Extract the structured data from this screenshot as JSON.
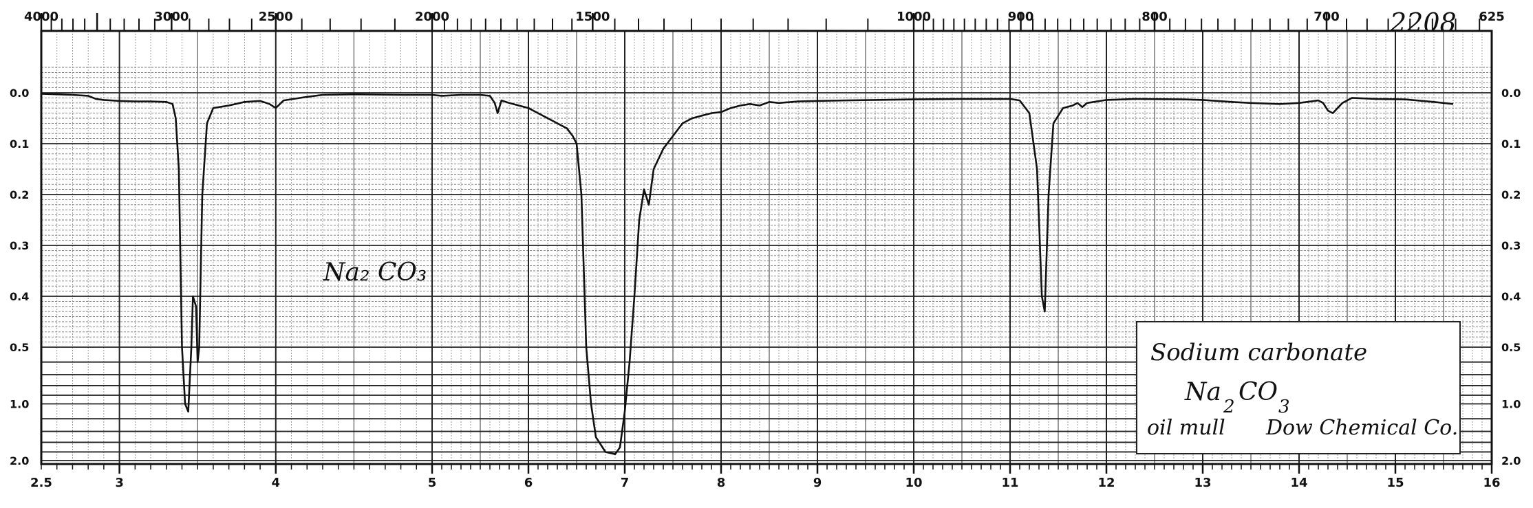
{
  "spectrum_number": "2208",
  "sample_note": "Na₂ CO₃",
  "label_box": {
    "name": "Sodium carbonate",
    "formula_main": "Na",
    "formula_sub1": "2",
    "formula_mid": "CO",
    "formula_sub2": "3",
    "method": "oil mull",
    "source": "Dow Chemical Co."
  },
  "chart_data": {
    "type": "line",
    "title": "",
    "xlabel": "",
    "ylabel": "",
    "x_bottom_range_microns": [
      2.5,
      16
    ],
    "x_bottom_ticks": [
      "2.5",
      "3",
      "4",
      "5",
      "6",
      "7",
      "8",
      "9",
      "10",
      "11",
      "12",
      "13",
      "14",
      "15",
      "16"
    ],
    "x_top_ticks": [
      {
        "label": "4000",
        "cm": 4000
      },
      {
        "label": "3000",
        "cm": 3000
      },
      {
        "label": "2500",
        "cm": 2500
      },
      {
        "label": "2000",
        "cm": 2000
      },
      {
        "label": "1500",
        "cm": 1500
      },
      {
        "label": "1000",
        "cm": 1000
      },
      {
        "label": "900",
        "cm": 900
      },
      {
        "label": "800",
        "cm": 800
      },
      {
        "label": "700",
        "cm": 700
      },
      {
        "label": "625",
        "cm": 625
      }
    ],
    "y_ticks_absorbance": [
      "0.0",
      "0.1",
      "0.2",
      "0.3",
      "0.4",
      "0.5",
      "1.0",
      "2.0"
    ],
    "grid": true,
    "series": [
      {
        "points": [
          [
            2.5,
            0.002
          ],
          [
            2.6,
            0.003
          ],
          [
            2.7,
            0.004
          ],
          [
            2.8,
            0.006
          ],
          [
            2.85,
            0.012
          ],
          [
            2.9,
            0.014
          ],
          [
            3.0,
            0.016
          ],
          [
            3.1,
            0.017
          ],
          [
            3.2,
            0.017
          ],
          [
            3.3,
            0.018
          ],
          [
            3.34,
            0.022
          ],
          [
            3.36,
            0.05
          ],
          [
            3.38,
            0.15
          ],
          [
            3.4,
            0.5
          ],
          [
            3.42,
            1.0
          ],
          [
            3.44,
            1.1
          ],
          [
            3.46,
            0.5
          ],
          [
            3.47,
            0.4
          ],
          [
            3.49,
            0.42
          ],
          [
            3.5,
            0.6
          ],
          [
            3.51,
            0.5
          ],
          [
            3.53,
            0.2
          ],
          [
            3.56,
            0.06
          ],
          [
            3.6,
            0.03
          ],
          [
            3.7,
            0.025
          ],
          [
            3.8,
            0.018
          ],
          [
            3.9,
            0.016
          ],
          [
            3.96,
            0.022
          ],
          [
            4.0,
            0.03
          ],
          [
            4.05,
            0.015
          ],
          [
            4.2,
            0.008
          ],
          [
            4.3,
            0.004
          ],
          [
            4.5,
            0.003
          ],
          [
            4.8,
            0.004
          ],
          [
            5.0,
            0.004
          ],
          [
            5.1,
            0.006
          ],
          [
            5.3,
            0.004
          ],
          [
            5.5,
            0.004
          ],
          [
            5.6,
            0.006
          ],
          [
            5.65,
            0.02
          ],
          [
            5.68,
            0.04
          ],
          [
            5.72,
            0.015
          ],
          [
            5.8,
            0.02
          ],
          [
            5.9,
            0.025
          ],
          [
            6.0,
            0.03
          ],
          [
            6.1,
            0.04
          ],
          [
            6.2,
            0.05
          ],
          [
            6.3,
            0.06
          ],
          [
            6.4,
            0.07
          ],
          [
            6.46,
            0.085
          ],
          [
            6.5,
            0.1
          ],
          [
            6.55,
            0.2
          ],
          [
            6.6,
            0.5
          ],
          [
            6.65,
            1.0
          ],
          [
            6.7,
            1.5
          ],
          [
            6.8,
            1.8
          ],
          [
            6.9,
            1.85
          ],
          [
            6.95,
            1.7
          ],
          [
            7.0,
            1.1
          ],
          [
            7.05,
            0.6
          ],
          [
            7.1,
            0.4
          ],
          [
            7.15,
            0.25
          ],
          [
            7.2,
            0.19
          ],
          [
            7.25,
            0.22
          ],
          [
            7.3,
            0.15
          ],
          [
            7.4,
            0.11
          ],
          [
            7.5,
            0.085
          ],
          [
            7.6,
            0.06
          ],
          [
            7.7,
            0.05
          ],
          [
            7.8,
            0.045
          ],
          [
            7.9,
            0.04
          ],
          [
            8.0,
            0.038
          ],
          [
            8.1,
            0.03
          ],
          [
            8.2,
            0.025
          ],
          [
            8.3,
            0.022
          ],
          [
            8.4,
            0.025
          ],
          [
            8.5,
            0.018
          ],
          [
            8.6,
            0.02
          ],
          [
            8.8,
            0.017
          ],
          [
            9.0,
            0.016
          ],
          [
            9.3,
            0.015
          ],
          [
            9.6,
            0.014
          ],
          [
            10.0,
            0.013
          ],
          [
            10.5,
            0.012
          ],
          [
            11.0,
            0.012
          ],
          [
            11.1,
            0.015
          ],
          [
            11.2,
            0.04
          ],
          [
            11.28,
            0.15
          ],
          [
            11.33,
            0.4
          ],
          [
            11.36,
            0.43
          ],
          [
            11.4,
            0.2
          ],
          [
            11.45,
            0.06
          ],
          [
            11.55,
            0.03
          ],
          [
            11.65,
            0.025
          ],
          [
            11.7,
            0.02
          ],
          [
            11.75,
            0.028
          ],
          [
            11.8,
            0.02
          ],
          [
            12.0,
            0.014
          ],
          [
            12.3,
            0.012
          ],
          [
            12.8,
            0.013
          ],
          [
            13.0,
            0.014
          ],
          [
            13.3,
            0.018
          ],
          [
            13.5,
            0.02
          ],
          [
            13.8,
            0.022
          ],
          [
            14.0,
            0.02
          ],
          [
            14.2,
            0.015
          ],
          [
            14.25,
            0.02
          ],
          [
            14.3,
            0.035
          ],
          [
            14.35,
            0.04
          ],
          [
            14.45,
            0.02
          ],
          [
            14.55,
            0.01
          ],
          [
            14.8,
            0.012
          ],
          [
            15.1,
            0.013
          ],
          [
            15.4,
            0.018
          ],
          [
            15.6,
            0.022
          ]
        ]
      }
    ]
  }
}
